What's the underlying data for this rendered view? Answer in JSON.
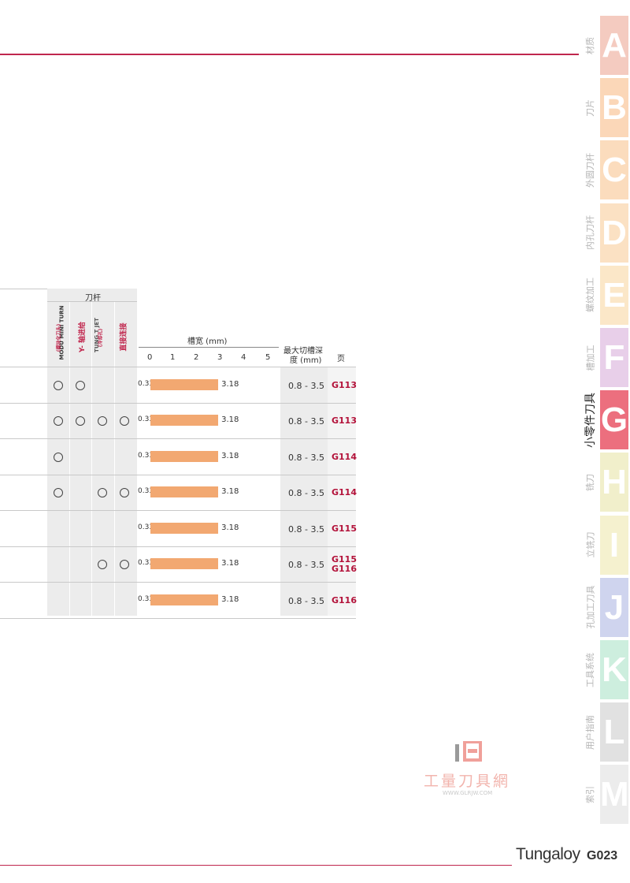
{
  "colors": {
    "accent_rule": "#c0264d",
    "page_ref": "#b3123a",
    "bar": "#f2a871"
  },
  "header": {
    "holder_group": "刀杆",
    "holders": [
      "MODU MINI TURN",
      "Y- 轴进给",
      "TUNG T JET",
      "直接连接"
    ],
    "holder_subs": [
      "(模块化刀头)",
      "",
      "(冷却孔)",
      ""
    ],
    "groove_width_title": "槽宽 (mm)",
    "scale": [
      "0",
      "1",
      "2",
      "3",
      "4",
      "5"
    ],
    "max_depth_title_1": "最大切槽深",
    "max_depth_title_2": "度 (mm)",
    "page_title": "页"
  },
  "rows": [
    {
      "circles": [
        true,
        true,
        false,
        false
      ],
      "min": "0.33",
      "max": "3.18",
      "depth": "0.8 - 3.5",
      "pages": [
        "G113"
      ]
    },
    {
      "circles": [
        true,
        true,
        true,
        true
      ],
      "min": "0.33",
      "max": "3.18",
      "depth": "0.8 - 3.5",
      "pages": [
        "G113"
      ]
    },
    {
      "circles": [
        true,
        false,
        false,
        false
      ],
      "min": "0.33",
      "max": "3.18",
      "depth": "0.8 - 3.5",
      "pages": [
        "G114"
      ]
    },
    {
      "circles": [
        true,
        false,
        true,
        true
      ],
      "min": "0.33",
      "max": "3.18",
      "depth": "0.8 - 3.5",
      "pages": [
        "G114"
      ]
    },
    {
      "circles": [
        false,
        false,
        false,
        false
      ],
      "min": "0.33",
      "max": "3.18",
      "depth": "0.8 - 3.5",
      "pages": [
        "G115"
      ]
    },
    {
      "circles": [
        false,
        false,
        true,
        true
      ],
      "min": "0.33",
      "max": "3.18",
      "depth": "0.8 - 3.5",
      "pages": [
        "G115",
        "G116"
      ]
    },
    {
      "circles": [
        false,
        false,
        false,
        false
      ],
      "min": "0.33",
      "max": "3.18",
      "depth": "0.8 - 3.5",
      "pages": [
        "G116"
      ]
    }
  ],
  "tabs": [
    {
      "letter": "A",
      "label": "材质",
      "color": "#f4cbc0",
      "active": false
    },
    {
      "letter": "B",
      "label": "刀片",
      "color": "#fbd7b8",
      "active": false
    },
    {
      "letter": "C",
      "label": "外圆刀杆",
      "color": "#fbdcbd",
      "active": false
    },
    {
      "letter": "D",
      "label": "内孔刀杆",
      "color": "#fbe1c3",
      "active": false
    },
    {
      "letter": "E",
      "label": "螺纹加工",
      "color": "#fbe7c8",
      "active": false
    },
    {
      "letter": "F",
      "label": "槽加工",
      "color": "#e8cfe9",
      "active": false
    },
    {
      "letter": "G",
      "label": "小零件刀具",
      "color": "#ec6f7e",
      "active": true
    },
    {
      "letter": "H",
      "label": "铣刀",
      "color": "#f1efcb",
      "active": false
    },
    {
      "letter": "I",
      "label": "立铣刀",
      "color": "#f5f1cf",
      "active": false
    },
    {
      "letter": "J",
      "label": "孔加工刀具",
      "color": "#cfd4ee",
      "active": false
    },
    {
      "letter": "K",
      "label": "工具系统",
      "color": "#cdeede",
      "active": false
    },
    {
      "letter": "L",
      "label": "用户指南",
      "color": "#e1e1e1",
      "active": false
    },
    {
      "letter": "M",
      "label": "索引",
      "color": "#ececec",
      "active": false
    }
  ],
  "watermark": {
    "title": "工量刀具網",
    "url": "WWW.GLRJW.COM"
  },
  "footer": {
    "brand": "Tungaloy",
    "page": "G023"
  }
}
